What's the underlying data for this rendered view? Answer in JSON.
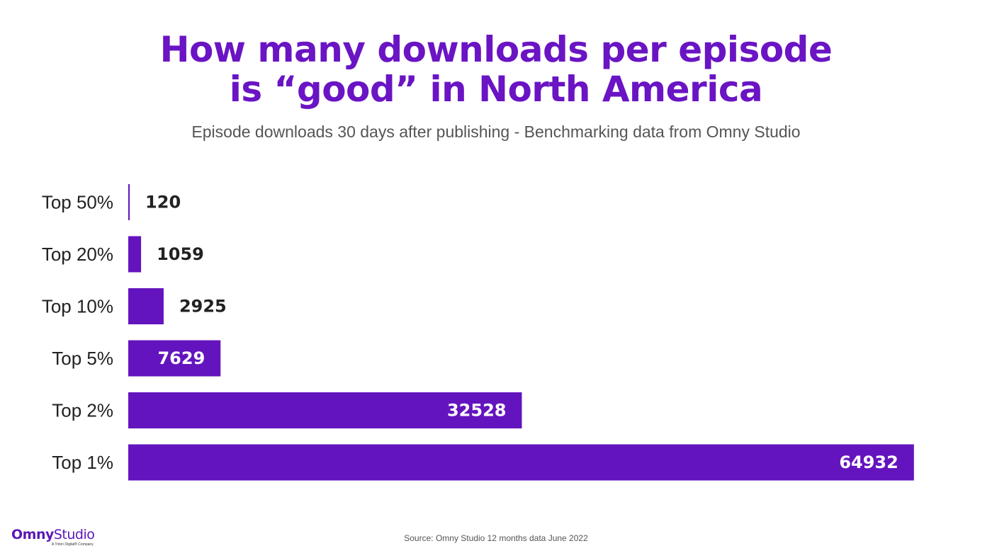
{
  "title_lines": [
    "How many downloads per episode",
    "is “good” in North America"
  ],
  "subtitle": "Episode downloads 30 days after publishing - Benchmarking data from Omny Studio",
  "source": "Source: Omny Studio 12 months data June 2022",
  "logo": {
    "brand_part1": "Omny",
    "brand_part2": "Studio",
    "tagline": "A Triton Digital® Company"
  },
  "colors": {
    "bar": "#6414be",
    "title": "#6a14c4",
    "label_dark": "#222222",
    "label_light": "#ffffff"
  },
  "chart_data": {
    "type": "bar",
    "orientation": "horizontal",
    "title": "How many downloads per episode is “good” in North America",
    "subtitle": "Episode downloads 30 days after publishing - Benchmarking data from Omny Studio",
    "categories": [
      "Top 50%",
      "Top 20%",
      "Top 10%",
      "Top 5%",
      "Top 2%",
      "Top 1%"
    ],
    "values": [
      120,
      1059,
      2925,
      7629,
      32528,
      64932
    ],
    "xlim": [
      0,
      65000
    ],
    "grid": false,
    "data_labels": true
  }
}
